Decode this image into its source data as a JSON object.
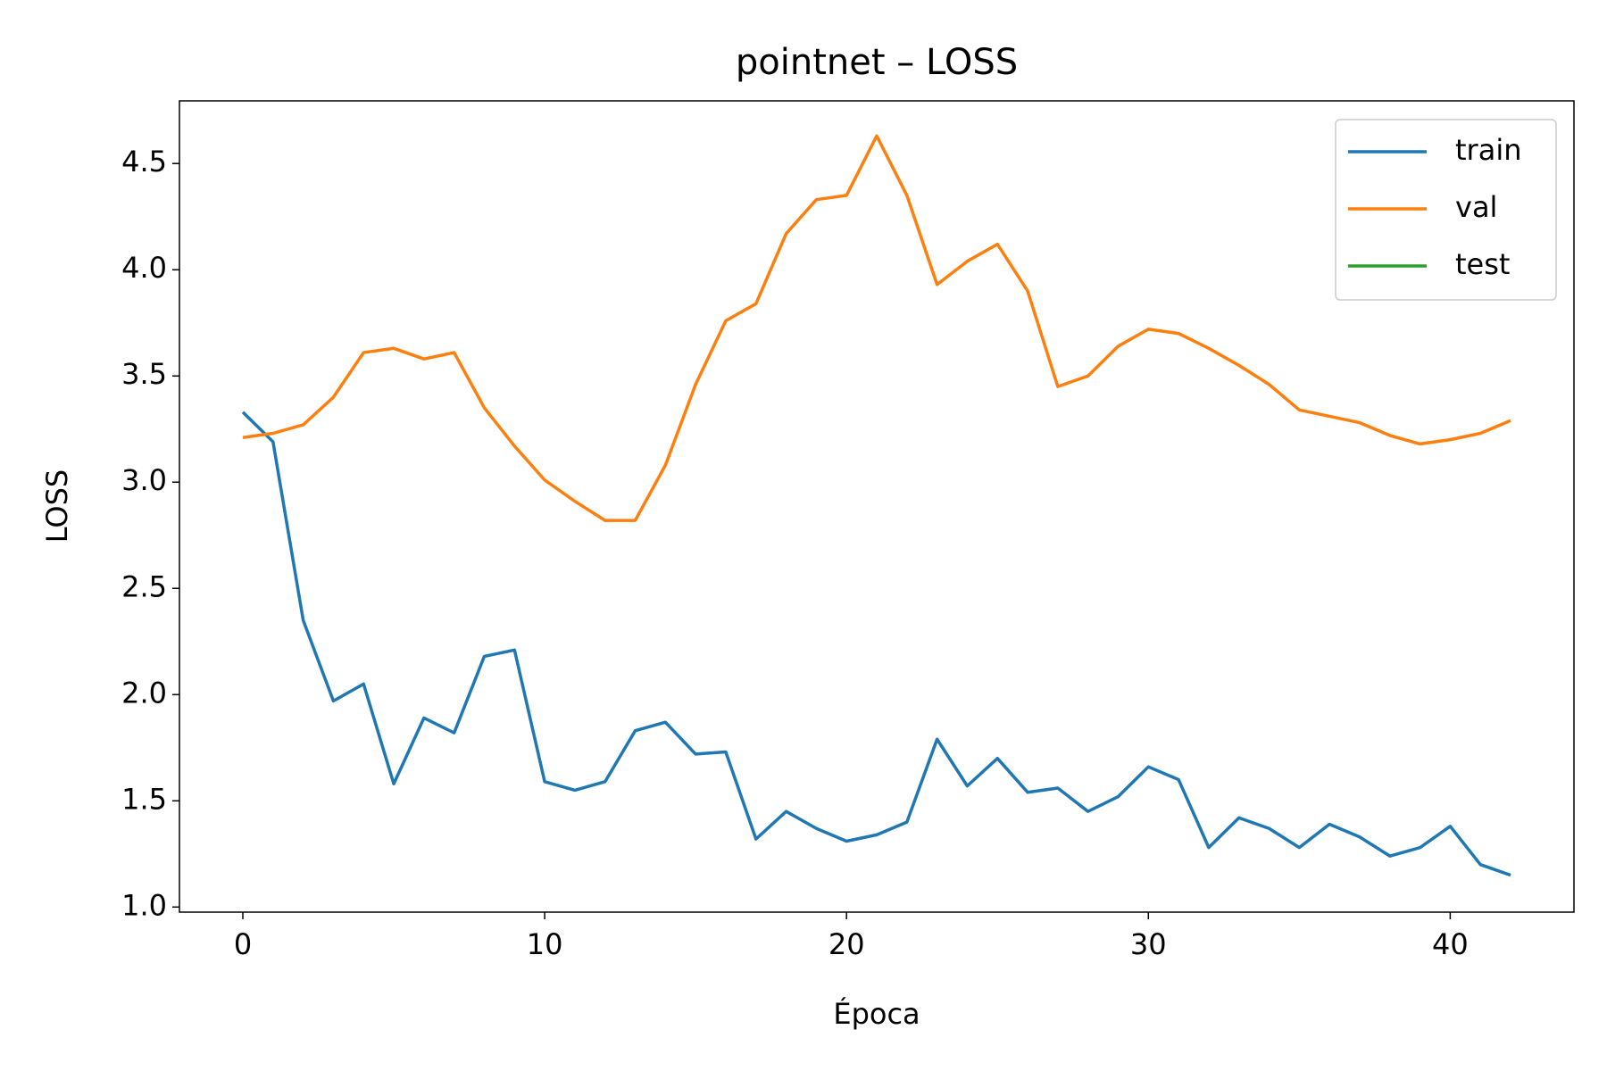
{
  "chart_data": {
    "type": "line",
    "title": "pointnet – LOSS",
    "x_label": "Época",
    "y_label": "LOSS",
    "x": [
      0,
      1,
      2,
      3,
      4,
      5,
      6,
      7,
      8,
      9,
      10,
      11,
      12,
      13,
      14,
      15,
      16,
      17,
      18,
      19,
      20,
      21,
      22,
      23,
      24,
      25,
      26,
      27,
      28,
      29,
      30,
      31,
      32,
      33,
      34,
      35,
      36,
      37,
      38,
      39,
      40,
      41,
      42
    ],
    "series": [
      {
        "name": "train",
        "color": "#1f77b4",
        "values": [
          3.33,
          3.19,
          2.35,
          1.97,
          2.05,
          1.58,
          1.89,
          1.82,
          2.18,
          2.21,
          1.59,
          1.55,
          1.59,
          1.83,
          1.87,
          1.72,
          1.73,
          1.32,
          1.45,
          1.37,
          1.31,
          1.34,
          1.4,
          1.79,
          1.57,
          1.7,
          1.54,
          1.56,
          1.45,
          1.52,
          1.66,
          1.6,
          1.28,
          1.42,
          1.37,
          1.28,
          1.39,
          1.33,
          1.24,
          1.28,
          1.38,
          1.2,
          1.15
        ]
      },
      {
        "name": "val",
        "color": "#ff7f0e",
        "values": [
          3.21,
          3.23,
          3.27,
          3.4,
          3.61,
          3.63,
          3.58,
          3.61,
          3.35,
          3.17,
          3.01,
          2.91,
          2.82,
          2.82,
          3.08,
          3.46,
          3.76,
          3.84,
          4.17,
          4.33,
          4.35,
          4.63,
          4.35,
          3.93,
          4.04,
          4.12,
          3.9,
          3.45,
          3.5,
          3.64,
          3.72,
          3.7,
          3.63,
          3.55,
          3.46,
          3.34,
          3.31,
          3.28,
          3.22,
          3.18,
          3.2,
          3.23,
          3.29
        ]
      },
      {
        "name": "test",
        "color": "#2ca02c",
        "values": [
          null,
          null,
          null,
          null,
          null,
          null,
          null,
          null,
          null,
          null,
          null,
          null,
          null,
          null,
          null,
          null,
          null,
          null,
          null,
          null,
          null,
          null,
          null,
          null,
          null,
          null,
          null,
          null,
          null,
          null,
          null,
          null,
          null,
          null,
          null,
          null,
          null,
          null,
          null,
          null,
          null,
          null,
          null
        ]
      }
    ],
    "xlim": [
      -2.1,
      44.1
    ],
    "xticks": [
      0,
      10,
      20,
      30,
      40
    ],
    "ylim": [
      0.976,
      4.795
    ],
    "yticks": [
      {
        "value": 1,
        "label": "1.0"
      },
      1.5,
      {
        "value": 2,
        "label": "2.0"
      },
      2.5,
      {
        "value": 3,
        "label": "3.0"
      },
      3.5,
      {
        "value": 4,
        "label": "4.0"
      },
      4.5
    ],
    "grid": false,
    "legend": "upper right"
  }
}
